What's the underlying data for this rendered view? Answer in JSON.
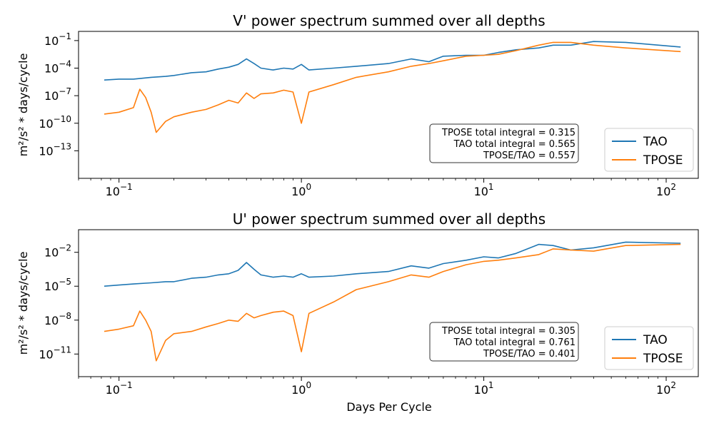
{
  "x_axis_label": "Days Per Cycle",
  "colors": {
    "tao": "#1f77b4",
    "tpose": "#ff7f0e"
  },
  "chart_data": [
    {
      "type": "line",
      "title": "V' power spectrum summed over all depths",
      "xlabel": "",
      "ylabel": "m²/s² * days/cycle",
      "xscale": "log",
      "yscale": "log",
      "xlim": [
        0.06,
        150
      ],
      "ylim_exponent": [
        -16,
        0
      ],
      "x_ticks": [
        {
          "label": "10",
          "exp": "−1"
        },
        {
          "label": "10",
          "exp": "0"
        },
        {
          "label": "10",
          "exp": "1"
        },
        {
          "label": "10",
          "exp": "2"
        }
      ],
      "y_ticks": [
        {
          "label": "10",
          "exp": "−13"
        },
        {
          "label": "10",
          "exp": "−10"
        },
        {
          "label": "10",
          "exp": "−7"
        },
        {
          "label": "10",
          "exp": "−4"
        },
        {
          "label": "10",
          "exp": "−1"
        }
      ],
      "legend": [
        "TAO",
        "TPOSE"
      ],
      "legend_position": "lower right",
      "annotation": [
        "TPOSE total integral = 0.315",
        "TAO total integral = 0.565",
        "TPOSE/TAO = 0.557"
      ],
      "series": [
        {
          "name": "TAO",
          "x": [
            0.083,
            0.1,
            0.12,
            0.15,
            0.18,
            0.2,
            0.25,
            0.3,
            0.35,
            0.4,
            0.45,
            0.5,
            0.55,
            0.6,
            0.7,
            0.8,
            0.9,
            1.0,
            1.1,
            1.5,
            2.0,
            3.0,
            4.0,
            5.0,
            6.0,
            8.0,
            10.0,
            12.0,
            15.0,
            20.0,
            24.0,
            30.0,
            40.0,
            60.0,
            120.0
          ],
          "y_log10": [
            -5.3,
            -5.2,
            -5.2,
            -5.0,
            -4.9,
            -4.8,
            -4.5,
            -4.4,
            -4.1,
            -3.9,
            -3.6,
            -3.0,
            -3.5,
            -4.0,
            -4.2,
            -4.0,
            -4.1,
            -3.6,
            -4.2,
            -4.0,
            -3.8,
            -3.5,
            -3.0,
            -3.3,
            -2.7,
            -2.6,
            -2.6,
            -2.3,
            -2.0,
            -1.8,
            -1.5,
            -1.5,
            -1.1,
            -1.2,
            -1.7
          ]
        },
        {
          "name": "TPOSE",
          "x": [
            0.083,
            0.1,
            0.12,
            0.13,
            0.14,
            0.15,
            0.16,
            0.18,
            0.2,
            0.25,
            0.3,
            0.35,
            0.4,
            0.45,
            0.5,
            0.55,
            0.6,
            0.7,
            0.8,
            0.9,
            1.0,
            1.1,
            1.5,
            2.0,
            3.0,
            4.0,
            5.0,
            6.0,
            8.0,
            10.0,
            12.0,
            15.0,
            20.0,
            24.0,
            30.0,
            40.0,
            60.0,
            120.0
          ],
          "y_log10": [
            -9.0,
            -8.8,
            -8.3,
            -6.3,
            -7.2,
            -8.8,
            -11.0,
            -9.8,
            -9.3,
            -8.8,
            -8.5,
            -8.0,
            -7.5,
            -7.8,
            -6.7,
            -7.3,
            -6.8,
            -6.7,
            -6.4,
            -6.6,
            -10.0,
            -6.6,
            -5.8,
            -5.0,
            -4.4,
            -3.8,
            -3.5,
            -3.2,
            -2.7,
            -2.6,
            -2.5,
            -2.1,
            -1.5,
            -1.2,
            -1.2,
            -1.5,
            -1.8,
            -2.2
          ]
        }
      ]
    },
    {
      "type": "line",
      "title": "U' power spectrum summed over all depths",
      "xlabel": "Days Per Cycle",
      "ylabel": "m²/s² * days/cycle",
      "xscale": "log",
      "yscale": "log",
      "xlim": [
        0.06,
        150
      ],
      "ylim_exponent": [
        -13,
        0
      ],
      "x_ticks": [
        {
          "label": "10",
          "exp": "−1"
        },
        {
          "label": "10",
          "exp": "0"
        },
        {
          "label": "10",
          "exp": "1"
        },
        {
          "label": "10",
          "exp": "2"
        }
      ],
      "y_ticks": [
        {
          "label": "10",
          "exp": "−11"
        },
        {
          "label": "10",
          "exp": "−8"
        },
        {
          "label": "10",
          "exp": "−5"
        },
        {
          "label": "10",
          "exp": "−2"
        }
      ],
      "legend": [
        "TAO",
        "TPOSE"
      ],
      "legend_position": "lower right",
      "annotation": [
        "TPOSE total integral = 0.305",
        "TAO total integral = 0.761",
        "TPOSE/TAO = 0.401"
      ],
      "series": [
        {
          "name": "TAO",
          "x": [
            0.083,
            0.1,
            0.12,
            0.15,
            0.18,
            0.2,
            0.25,
            0.3,
            0.35,
            0.4,
            0.45,
            0.5,
            0.55,
            0.6,
            0.7,
            0.8,
            0.9,
            1.0,
            1.1,
            1.5,
            2.0,
            3.0,
            4.0,
            5.0,
            6.0,
            8.0,
            10.0,
            12.0,
            15.0,
            20.0,
            24.0,
            30.0,
            40.0,
            60.0,
            120.0
          ],
          "y_log10": [
            -5.0,
            -4.9,
            -4.8,
            -4.7,
            -4.6,
            -4.6,
            -4.3,
            -4.2,
            -4.0,
            -3.9,
            -3.6,
            -2.9,
            -3.5,
            -4.0,
            -4.2,
            -4.1,
            -4.2,
            -3.9,
            -4.2,
            -4.1,
            -3.9,
            -3.7,
            -3.2,
            -3.4,
            -3.0,
            -2.7,
            -2.4,
            -2.5,
            -2.1,
            -1.3,
            -1.4,
            -1.8,
            -1.6,
            -1.1,
            -1.2
          ]
        },
        {
          "name": "TPOSE",
          "x": [
            0.083,
            0.1,
            0.12,
            0.13,
            0.14,
            0.15,
            0.16,
            0.18,
            0.2,
            0.25,
            0.3,
            0.35,
            0.4,
            0.45,
            0.5,
            0.55,
            0.6,
            0.7,
            0.8,
            0.9,
            1.0,
            1.1,
            1.5,
            2.0,
            3.0,
            4.0,
            5.0,
            6.0,
            8.0,
            10.0,
            12.0,
            15.0,
            20.0,
            24.0,
            30.0,
            40.0,
            60.0,
            120.0
          ],
          "y_log10": [
            -9.0,
            -8.8,
            -8.5,
            -7.2,
            -8.0,
            -9.0,
            -11.6,
            -9.8,
            -9.2,
            -9.0,
            -8.6,
            -8.3,
            -8.0,
            -8.1,
            -7.4,
            -7.8,
            -7.6,
            -7.3,
            -7.2,
            -7.6,
            -10.8,
            -7.4,
            -6.4,
            -5.3,
            -4.6,
            -4.0,
            -4.2,
            -3.7,
            -3.1,
            -2.8,
            -2.7,
            -2.5,
            -2.2,
            -1.7,
            -1.8,
            -1.9,
            -1.4,
            -1.3
          ]
        }
      ]
    }
  ]
}
